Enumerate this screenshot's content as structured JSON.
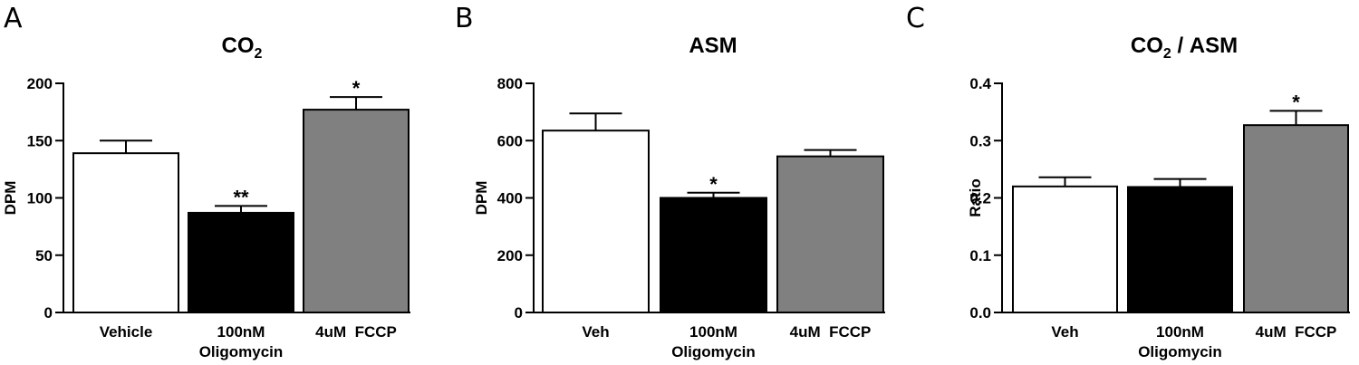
{
  "chart_data": [
    {
      "type": "bar",
      "panel": "A",
      "title": "CO",
      "title_sub": "2",
      "title_suffix": "",
      "ylabel": "DPM",
      "ylim": [
        0,
        200
      ],
      "yticks": [
        "0",
        "50",
        "100",
        "150",
        "200"
      ],
      "categories": [
        {
          "line1": "Vehicle",
          "line2": ""
        },
        {
          "line1": "100nM",
          "line2": "Oligomycin"
        },
        {
          "line1": "4uM  FCCP",
          "line2": ""
        }
      ],
      "values": [
        139,
        87,
        177
      ],
      "errors": [
        11,
        6,
        11
      ],
      "significance": [
        "",
        "**",
        "*"
      ],
      "colors": [
        "#ffffff",
        "#000000",
        "#808080"
      ]
    },
    {
      "type": "bar",
      "panel": "B",
      "title": "ASM",
      "title_sub": "",
      "title_suffix": "",
      "ylabel": "DPM",
      "ylim": [
        0,
        800
      ],
      "yticks": [
        "0",
        "200",
        "400",
        "600",
        "800"
      ],
      "categories": [
        {
          "line1": "Veh",
          "line2": ""
        },
        {
          "line1": "100nM",
          "line2": "Oligomycin"
        },
        {
          "line1": "4uM  FCCP",
          "line2": ""
        }
      ],
      "values": [
        635,
        400,
        545
      ],
      "errors": [
        60,
        18,
        22
      ],
      "significance": [
        "",
        "*",
        ""
      ],
      "colors": [
        "#ffffff",
        "#000000",
        "#808080"
      ]
    },
    {
      "type": "bar",
      "panel": "C",
      "title": "CO",
      "title_sub": "2",
      "title_suffix": " / ASM",
      "ylabel": "Ratio",
      "ylim": [
        0,
        0.4
      ],
      "yticks": [
        "0.0",
        "0.1",
        "0.2",
        "0.3",
        "0.4"
      ],
      "categories": [
        {
          "line1": "Veh",
          "line2": ""
        },
        {
          "line1": "100nM",
          "line2": "Oligomycin"
        },
        {
          "line1": "4uM  FCCP",
          "line2": ""
        }
      ],
      "values": [
        0.22,
        0.219,
        0.327
      ],
      "errors": [
        0.016,
        0.014,
        0.025
      ],
      "significance": [
        "",
        "",
        "*"
      ],
      "colors": [
        "#ffffff",
        "#000000",
        "#808080"
      ]
    }
  ]
}
